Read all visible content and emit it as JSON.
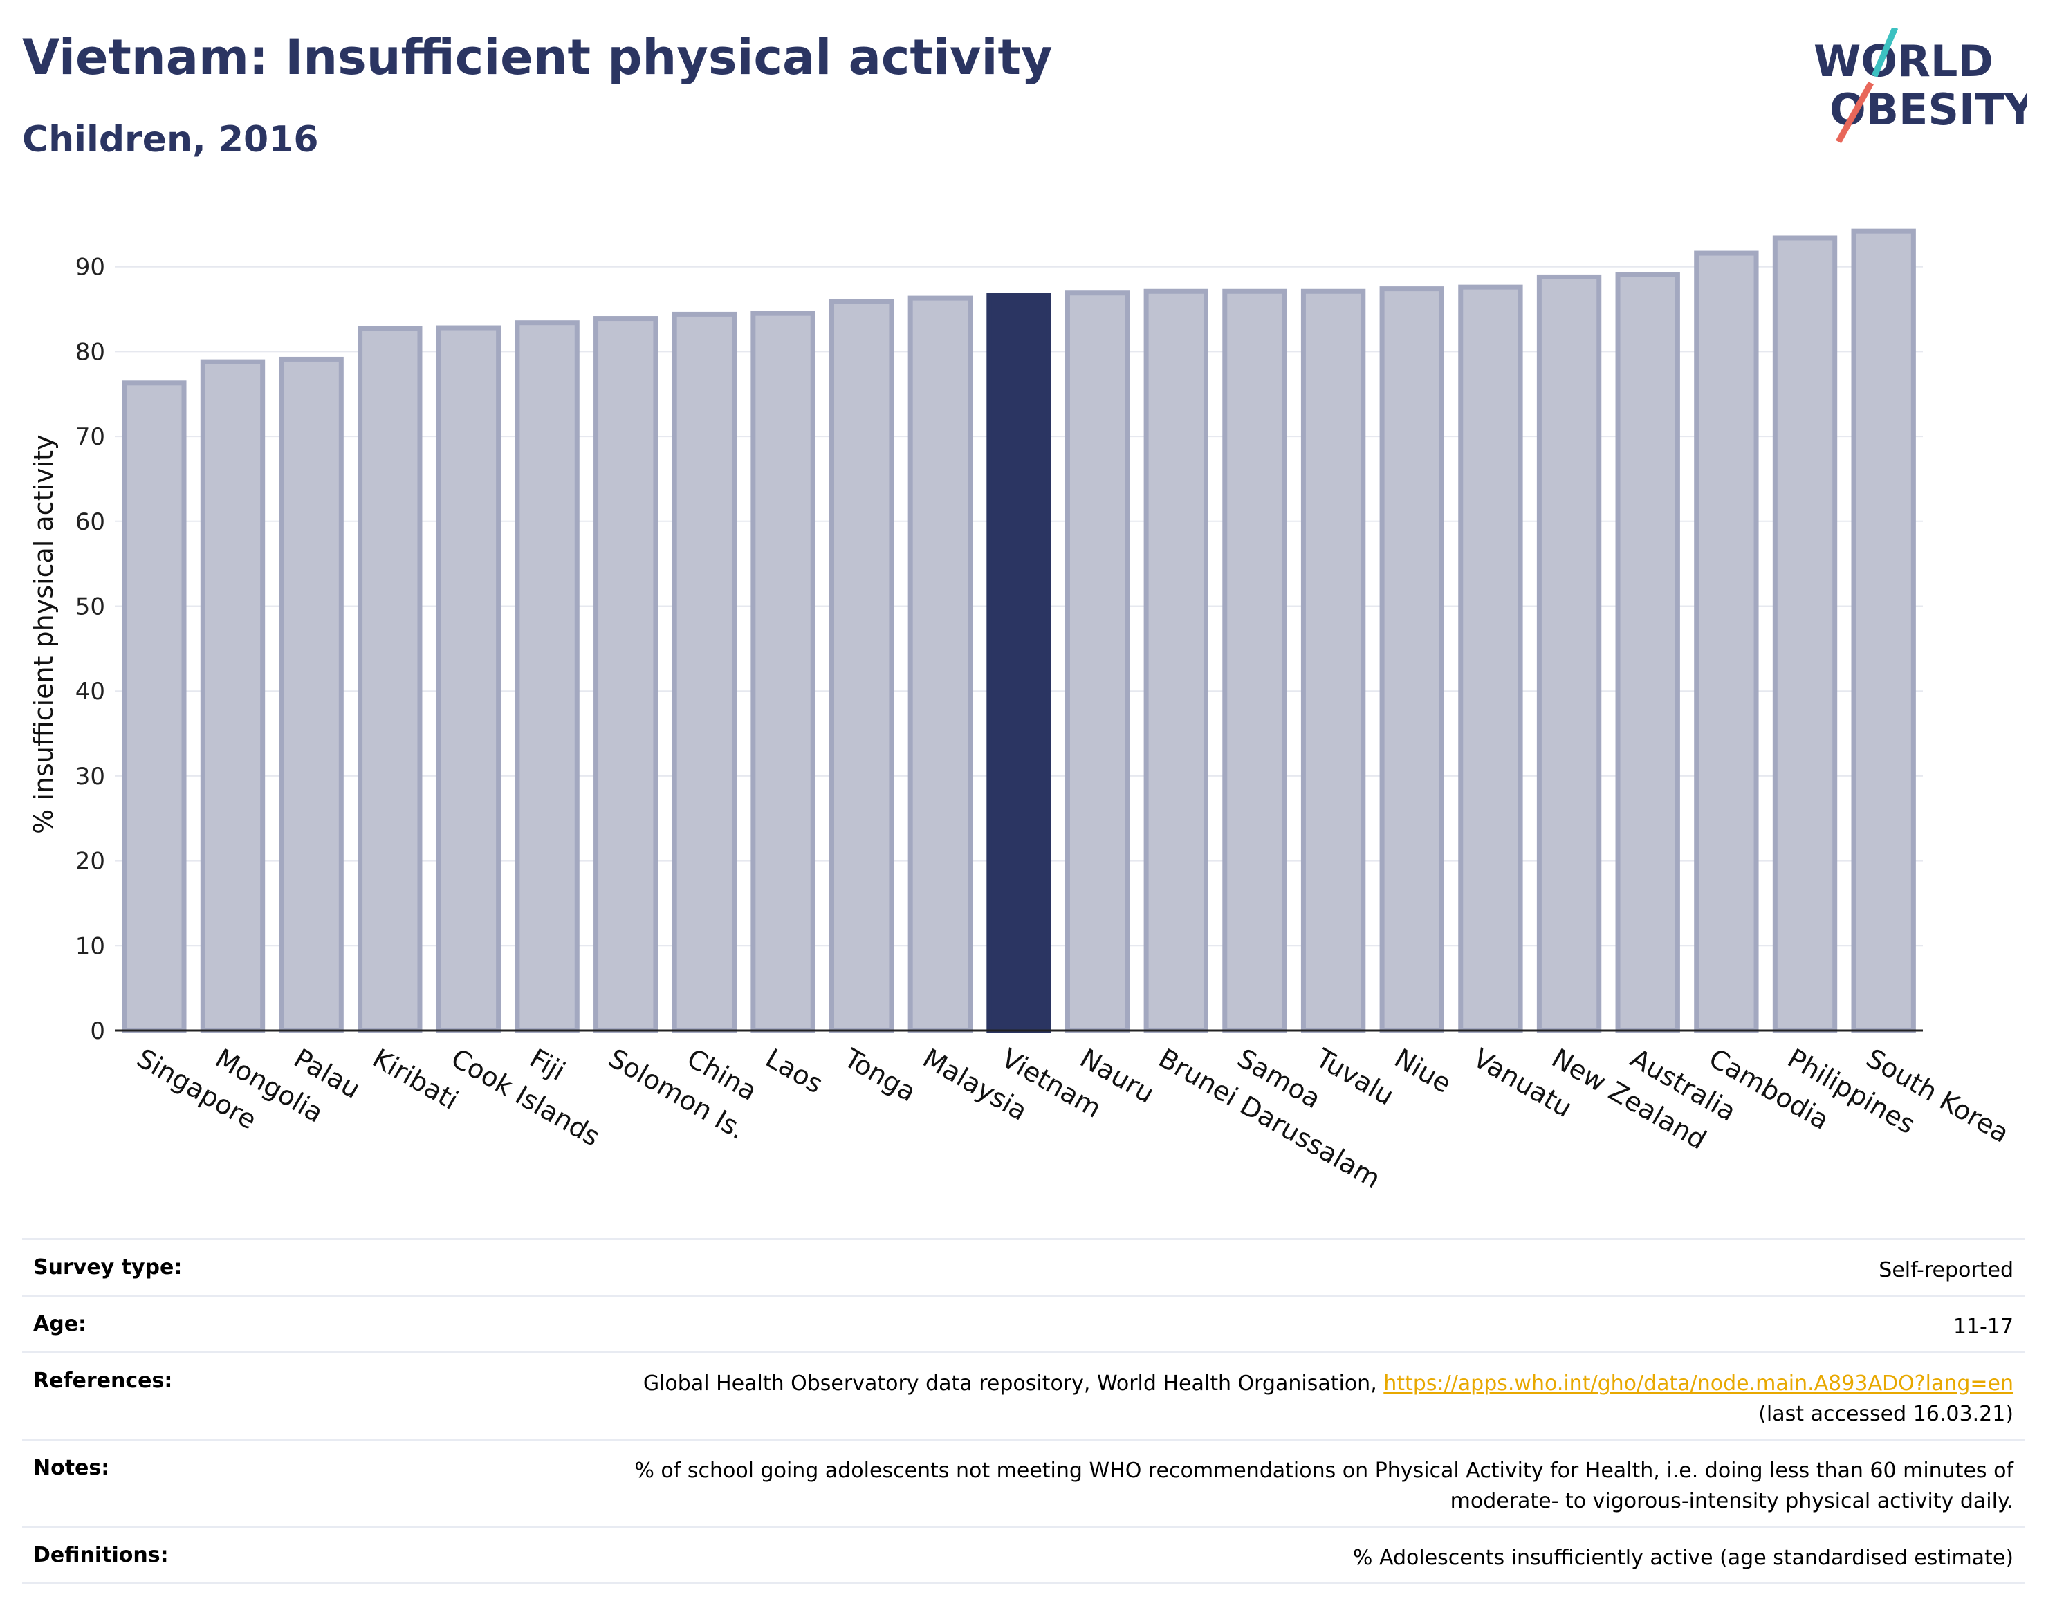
{
  "header": {
    "title": "Vietnam: Insufficient physical activity",
    "subtitle": "Children, 2016",
    "logo_line1": "WORLD",
    "logo_line2": "OBESITY"
  },
  "colors": {
    "highlight": "#2b3562",
    "bar_fill": "#bfc2d1",
    "bar_stroke": "#a3a8c0",
    "text_dark": "#2b3562",
    "logo_teal": "#3cc1c1",
    "logo_red": "#e8675a",
    "link": "#e8a800"
  },
  "chart_data": {
    "type": "bar",
    "ylabel": "% insufficient physical activity",
    "ylim": [
      0,
      95
    ],
    "yticks": [
      0,
      10,
      20,
      30,
      40,
      50,
      60,
      70,
      80,
      90
    ],
    "grid": true,
    "highlight": "Vietnam",
    "categories": [
      "Singapore",
      "Mongolia",
      "Palau",
      "Kiribati",
      "Cook Islands",
      "Fiji",
      "Solomon Is.",
      "China",
      "Laos",
      "Tonga",
      "Malaysia",
      "Vietnam",
      "Nauru",
      "Brunei Darussalam",
      "Samoa",
      "Tuvalu",
      "Niue",
      "Vanuatu",
      "New Zealand",
      "Australia",
      "Cambodia",
      "Philippines",
      "South Korea"
    ],
    "values": [
      76.3,
      78.8,
      79.1,
      82.7,
      82.8,
      83.4,
      83.9,
      84.4,
      84.5,
      85.9,
      86.3,
      86.6,
      86.9,
      87.1,
      87.1,
      87.1,
      87.4,
      87.6,
      88.8,
      89.1,
      91.6,
      93.4,
      94.2
    ]
  },
  "info": {
    "survey_type": {
      "label": "Survey type:",
      "value": "Self-reported"
    },
    "age": {
      "label": "Age:",
      "value": "11-17"
    },
    "references": {
      "label": "References:",
      "text": "Global Health Observatory data repository, World Health Organisation, ",
      "link": "https://apps.who.int/gho/data/node.main.A893ADO?lang=en",
      "accessed": "(last accessed 16.03.21)"
    },
    "notes": {
      "label": "Notes:",
      "line1": "% of school going adolescents not meeting WHO recommendations on Physical Activity for Health, i.e. doing less than 60 minutes of",
      "line2": "moderate- to vigorous-intensity physical activity daily."
    },
    "definitions": {
      "label": "Definitions:",
      "value": "% Adolescents insufficiently active (age standardised estimate)"
    }
  }
}
